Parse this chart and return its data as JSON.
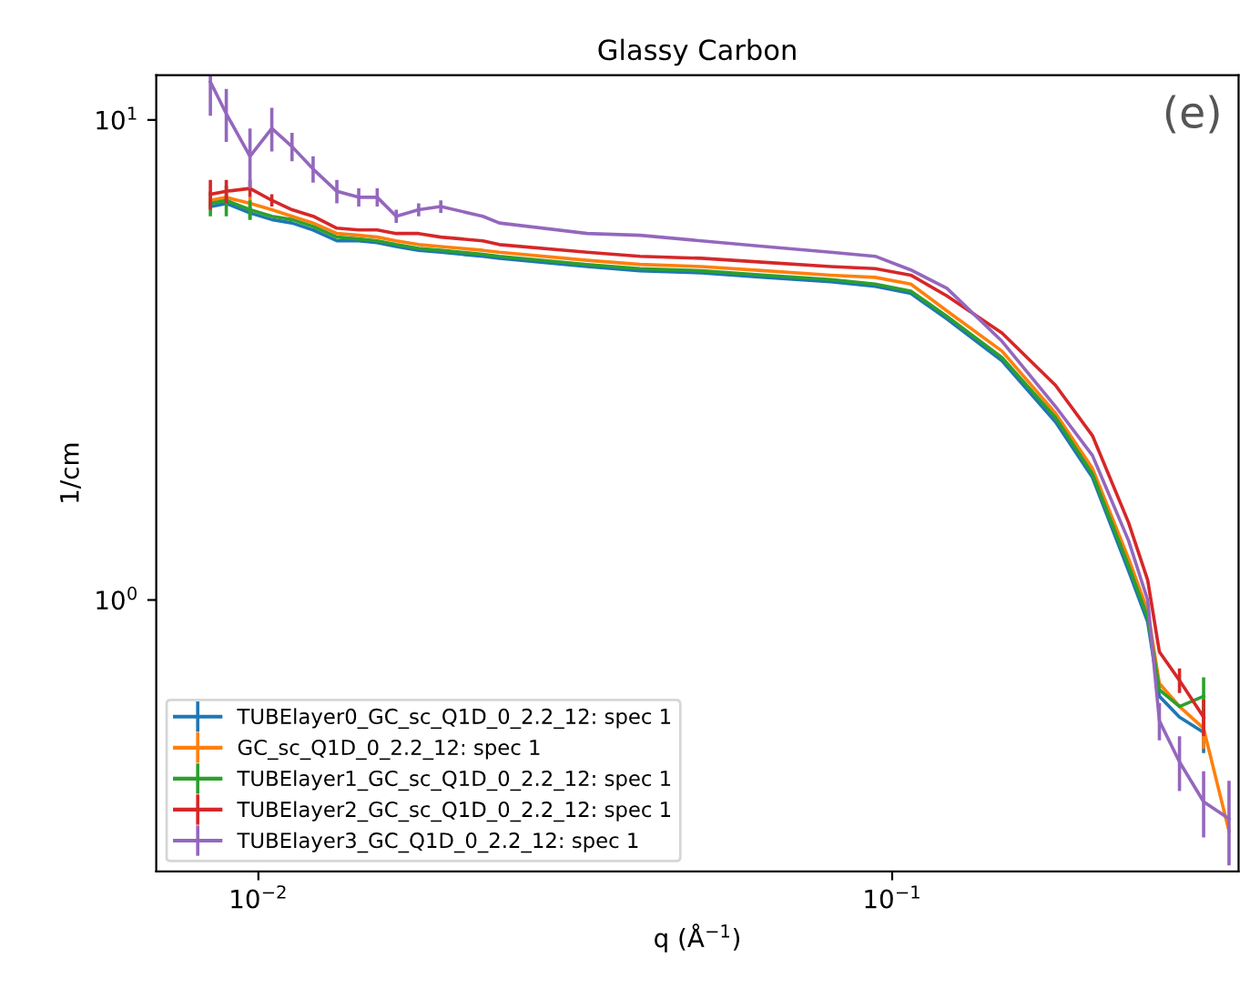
{
  "chart_data": {
    "type": "line",
    "title": "Glassy Carbon",
    "xlabel": "q (Å$^{−1}$)",
    "ylabel": "1/cm",
    "annotations": [
      "(e)"
    ],
    "log": "xy",
    "grid": false,
    "legend": "bottom left",
    "marker": "none",
    "line_style": "solid",
    "x": [
      0.0084,
      0.0089,
      0.0097,
      0.0105,
      0.0113,
      0.0122,
      0.0133,
      0.0144,
      0.0154,
      0.0165,
      0.0179,
      0.0194,
      0.0226,
      0.024,
      0.033,
      0.04,
      0.05,
      0.063,
      0.08,
      0.094,
      0.107,
      0.122,
      0.149,
      0.181,
      0.207,
      0.236,
      0.253,
      0.264,
      0.284,
      0.31,
      0.34
    ],
    "xlim": [
      0.0069,
      0.352
    ],
    "ylim": [
      0.272,
      12.4
    ],
    "xticks": [
      {
        "value": 0.01,
        "label": "10$^{−2}$"
      },
      {
        "value": 0.1,
        "label": "10$^{−1}$"
      }
    ],
    "yticks": [
      {
        "value": 1,
        "label": "10$^{0}$"
      },
      {
        "value": 10,
        "label": "10$^{1}$"
      }
    ],
    "series": [
      {
        "name": "TUBElayer0_GC_sc_Q1D_0_2.2_12: spec 1",
        "color": "#1f77b4",
        "values": [
          6.6,
          6.7,
          6.4,
          6.2,
          6.1,
          5.9,
          5.6,
          5.6,
          5.55,
          5.45,
          5.35,
          5.3,
          5.2,
          5.15,
          4.95,
          4.85,
          4.8,
          4.7,
          4.6,
          4.5,
          4.35,
          3.85,
          3.15,
          2.35,
          1.8,
          1.15,
          0.9,
          0.63,
          0.57,
          0.53,
          null
        ],
        "errors": [
          null,
          null,
          0.2,
          null,
          null,
          null,
          null,
          null,
          null,
          null,
          null,
          null,
          null,
          null,
          null,
          null,
          null,
          null,
          null,
          null,
          null,
          null,
          null,
          null,
          null,
          null,
          null,
          null,
          null,
          0.05,
          null
        ]
      },
      {
        "name": "GC_sc_Q1D_0_2.2_12: spec 1",
        "color": "#ff7f0e",
        "values": [
          6.8,
          6.9,
          6.7,
          6.5,
          6.3,
          6.1,
          5.8,
          5.75,
          5.7,
          5.6,
          5.5,
          5.45,
          5.35,
          5.3,
          5.1,
          5.0,
          4.95,
          4.85,
          4.75,
          4.7,
          4.55,
          4.0,
          3.3,
          2.45,
          1.88,
          1.22,
          0.95,
          0.67,
          0.6,
          0.54,
          0.33
        ],
        "errors": [
          null,
          null,
          0.2,
          null,
          null,
          null,
          null,
          null,
          null,
          null,
          null,
          null,
          null,
          null,
          null,
          null,
          null,
          null,
          null,
          null,
          null,
          null,
          null,
          null,
          null,
          null,
          null,
          null,
          null,
          0.05,
          null
        ]
      },
      {
        "name": "TUBElayer1_GC_sc_Q1D_0_2.2_12: spec 1",
        "color": "#2ca02c",
        "values": [
          6.7,
          6.8,
          6.5,
          6.3,
          6.2,
          6.0,
          5.7,
          5.65,
          5.6,
          5.5,
          5.4,
          5.35,
          5.25,
          5.2,
          5.0,
          4.9,
          4.85,
          4.75,
          4.65,
          4.55,
          4.4,
          3.9,
          3.2,
          2.4,
          1.83,
          1.18,
          0.92,
          0.65,
          0.6,
          0.63,
          null
        ],
        "errors": [
          0.4,
          0.5,
          0.3,
          null,
          null,
          null,
          null,
          null,
          null,
          null,
          null,
          null,
          null,
          null,
          null,
          null,
          null,
          null,
          null,
          null,
          null,
          null,
          null,
          null,
          null,
          null,
          null,
          null,
          null,
          0.06,
          null
        ]
      },
      {
        "name": "TUBElayer2_GC_sc_Q1D_0_2.2_12: spec 1",
        "color": "#d62728",
        "values": [
          7.0,
          7.1,
          7.2,
          6.8,
          6.5,
          6.3,
          5.95,
          5.9,
          5.9,
          5.8,
          5.8,
          5.7,
          5.6,
          5.5,
          5.3,
          5.2,
          5.15,
          5.05,
          4.95,
          4.9,
          4.75,
          4.3,
          3.6,
          2.8,
          2.2,
          1.45,
          1.1,
          0.78,
          0.68,
          0.57,
          null
        ],
        "errors": [
          0.5,
          0.4,
          0.3,
          0.2,
          null,
          null,
          null,
          null,
          null,
          null,
          null,
          null,
          null,
          null,
          null,
          null,
          null,
          null,
          null,
          null,
          null,
          null,
          null,
          null,
          null,
          null,
          null,
          null,
          0.04,
          0.05,
          null
        ]
      },
      {
        "name": "TUBElayer3_GC_Q1D_0_2.2_12: spec 1",
        "color": "#9467bd",
        "values": [
          12.0,
          10.3,
          8.4,
          9.6,
          8.8,
          7.9,
          7.1,
          6.9,
          6.9,
          6.3,
          6.5,
          6.6,
          6.3,
          6.1,
          5.8,
          5.75,
          5.6,
          5.45,
          5.3,
          5.2,
          4.87,
          4.46,
          3.46,
          2.53,
          2.0,
          1.33,
          1.0,
          0.56,
          0.46,
          0.38,
          0.35
        ],
        "errors": [
          1.8,
          1.3,
          1.2,
          1.0,
          0.6,
          0.5,
          0.4,
          0.3,
          0.3,
          0.2,
          0.2,
          0.2,
          null,
          null,
          null,
          null,
          null,
          null,
          null,
          null,
          null,
          null,
          null,
          null,
          null,
          null,
          null,
          0.05,
          0.06,
          0.06,
          0.07
        ]
      }
    ]
  }
}
